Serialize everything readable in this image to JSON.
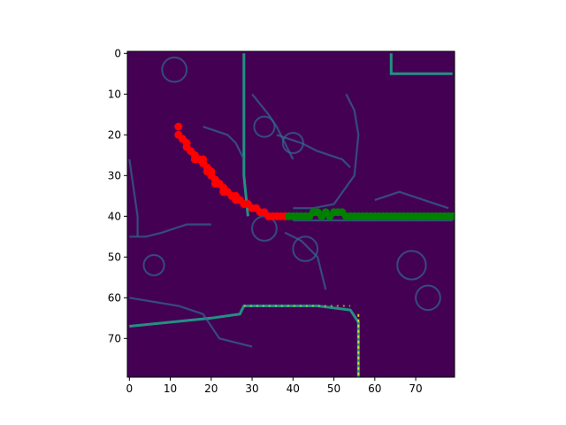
{
  "chart_data": {
    "type": "heatmap",
    "title": "",
    "xlabel": "",
    "ylabel": "",
    "colormap": "viridis",
    "background_color": "#440154",
    "grid": false,
    "image_size": [
      80,
      80
    ],
    "xlim": [
      -0.5,
      79.5
    ],
    "ylim": [
      79.5,
      -0.5
    ],
    "y_inverted": true,
    "x_ticks": [
      0,
      10,
      20,
      30,
      40,
      50,
      60,
      70
    ],
    "y_ticks": [
      0,
      10,
      20,
      30,
      40,
      50,
      60,
      70
    ],
    "x_tick_labels": [
      "0",
      "10",
      "20",
      "30",
      "40",
      "50",
      "60",
      "70"
    ],
    "y_tick_labels": [
      "0",
      "10",
      "20",
      "30",
      "40",
      "50",
      "60",
      "70"
    ],
    "series": [
      {
        "type": "scatter",
        "color": "#ff0000",
        "x": [
          12,
          12,
          13,
          14,
          14,
          15,
          16,
          16,
          17,
          18,
          18,
          19,
          19,
          20,
          20,
          21,
          21,
          22,
          23,
          23,
          24,
          25,
          26,
          26,
          27,
          28,
          29,
          30,
          31,
          32,
          33,
          34,
          35,
          36,
          37,
          38
        ],
        "y": [
          18,
          20,
          21,
          22,
          23,
          24,
          25,
          26,
          26,
          26,
          27,
          28,
          29,
          29,
          30,
          31,
          32,
          32,
          33,
          34,
          34,
          35,
          35,
          36,
          36,
          37,
          37,
          38,
          38,
          39,
          39,
          40,
          40,
          40,
          40,
          40
        ]
      },
      {
        "type": "scatter",
        "color": "#008000",
        "x": [
          39,
          40,
          41,
          42,
          43,
          44,
          45,
          46,
          47,
          48,
          49,
          50,
          51,
          52,
          53,
          54,
          55,
          56,
          57,
          58,
          59,
          60,
          61,
          62,
          63,
          64,
          65,
          66,
          67,
          68,
          69,
          70,
          71,
          72,
          73,
          74,
          75,
          76,
          77,
          78,
          79
        ],
        "y": [
          40,
          40,
          40,
          40,
          40,
          40,
          39,
          39,
          40,
          39,
          40,
          39,
          39,
          39,
          40,
          40,
          40,
          40,
          40,
          40,
          40,
          40,
          40,
          40,
          40,
          40,
          40,
          40,
          40,
          40,
          40,
          40,
          40,
          40,
          40,
          40,
          40,
          40,
          40,
          40,
          40
        ]
      }
    ]
  }
}
